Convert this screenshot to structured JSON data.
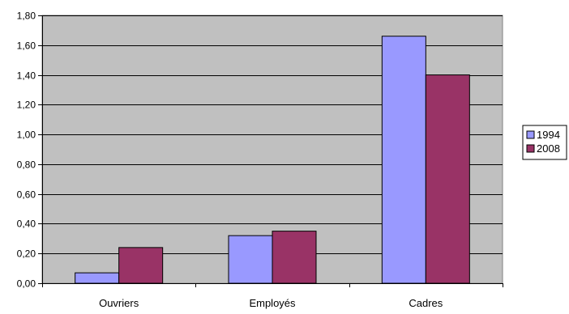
{
  "chart_data": {
    "type": "bar",
    "title": "",
    "xlabel": "",
    "ylabel": "",
    "categories": [
      "Ouvriers",
      "Employés",
      "Cadres"
    ],
    "series": [
      {
        "name": "1994",
        "values": [
          0.07,
          0.32,
          1.66
        ],
        "color": "#9999ff"
      },
      {
        "name": "2008",
        "values": [
          0.24,
          0.35,
          1.4
        ],
        "color": "#993366"
      }
    ],
    "ylim": [
      0,
      1.8
    ],
    "yticks": [
      0,
      0.2,
      0.4,
      0.6,
      0.8,
      1.0,
      1.2,
      1.4,
      1.6,
      1.8
    ],
    "ytick_labels": [
      "0,00",
      "0,20",
      "0,40",
      "0,60",
      "0,80",
      "1,00",
      "1,20",
      "1,40",
      "1,60",
      "1,80"
    ],
    "grid": true,
    "plot_background": "#c0c0c0",
    "legend_position": "right"
  }
}
